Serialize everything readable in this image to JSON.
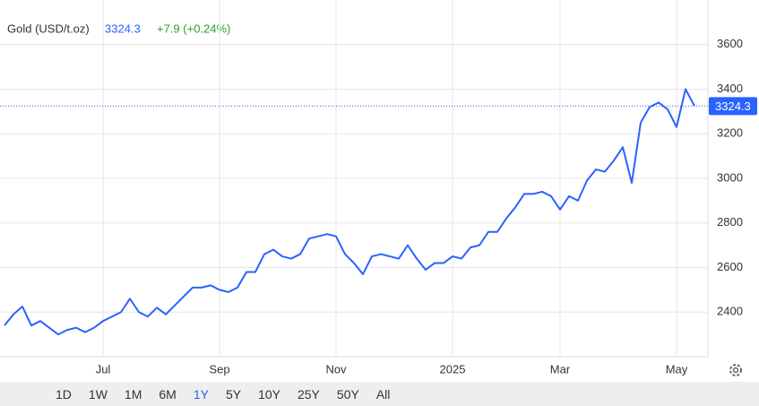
{
  "header": {
    "name": "Gold (USD/t.oz)",
    "price": 3324.3,
    "change": "+7.9 (+0.24%)"
  },
  "chart_data": {
    "type": "line",
    "color": "#2962ff",
    "categories": [
      null,
      null,
      null,
      null,
      null,
      null,
      null,
      null,
      null,
      null,
      null,
      "Jul",
      null,
      null,
      null,
      null,
      null,
      null,
      null,
      null,
      null,
      null,
      null,
      null,
      "Sep",
      null,
      null,
      null,
      null,
      null,
      null,
      null,
      null,
      null,
      null,
      null,
      null,
      "Nov",
      null,
      null,
      null,
      null,
      null,
      null,
      null,
      null,
      null,
      null,
      null,
      null,
      "2025",
      null,
      null,
      null,
      null,
      null,
      null,
      null,
      null,
      null,
      null,
      null,
      "Mar",
      null,
      null,
      null,
      null,
      null,
      null,
      null,
      null,
      null,
      null,
      null,
      null,
      "May",
      null,
      null
    ],
    "values": [
      2340,
      2390,
      2425,
      2340,
      2360,
      2330,
      2300,
      2320,
      2330,
      2310,
      2330,
      2360,
      2380,
      2400,
      2460,
      2400,
      2380,
      2420,
      2390,
      2430,
      2470,
      2510,
      2510,
      2520,
      2500,
      2490,
      2510,
      2580,
      2580,
      2660,
      2680,
      2650,
      2640,
      2660,
      2730,
      2740,
      2750,
      2740,
      2660,
      2620,
      2570,
      2650,
      2660,
      2650,
      2640,
      2700,
      2640,
      2590,
      2620,
      2620,
      2650,
      2640,
      2690,
      2700,
      2760,
      2760,
      2820,
      2870,
      2930,
      2930,
      2940,
      2920,
      2860,
      2920,
      2900,
      2990,
      3040,
      3030,
      3080,
      3140,
      2980,
      3250,
      3320,
      3340,
      3310,
      3230,
      3400,
      3324.3
    ],
    "ylim": [
      2200,
      3800
    ],
    "yticks": [
      2400,
      2600,
      2800,
      3000,
      3200,
      3400,
      3600
    ],
    "grid": true
  },
  "ranges": {
    "items": [
      "1D",
      "1W",
      "1M",
      "6M",
      "1Y",
      "5Y",
      "10Y",
      "25Y",
      "50Y",
      "All"
    ],
    "active": "1Y"
  }
}
